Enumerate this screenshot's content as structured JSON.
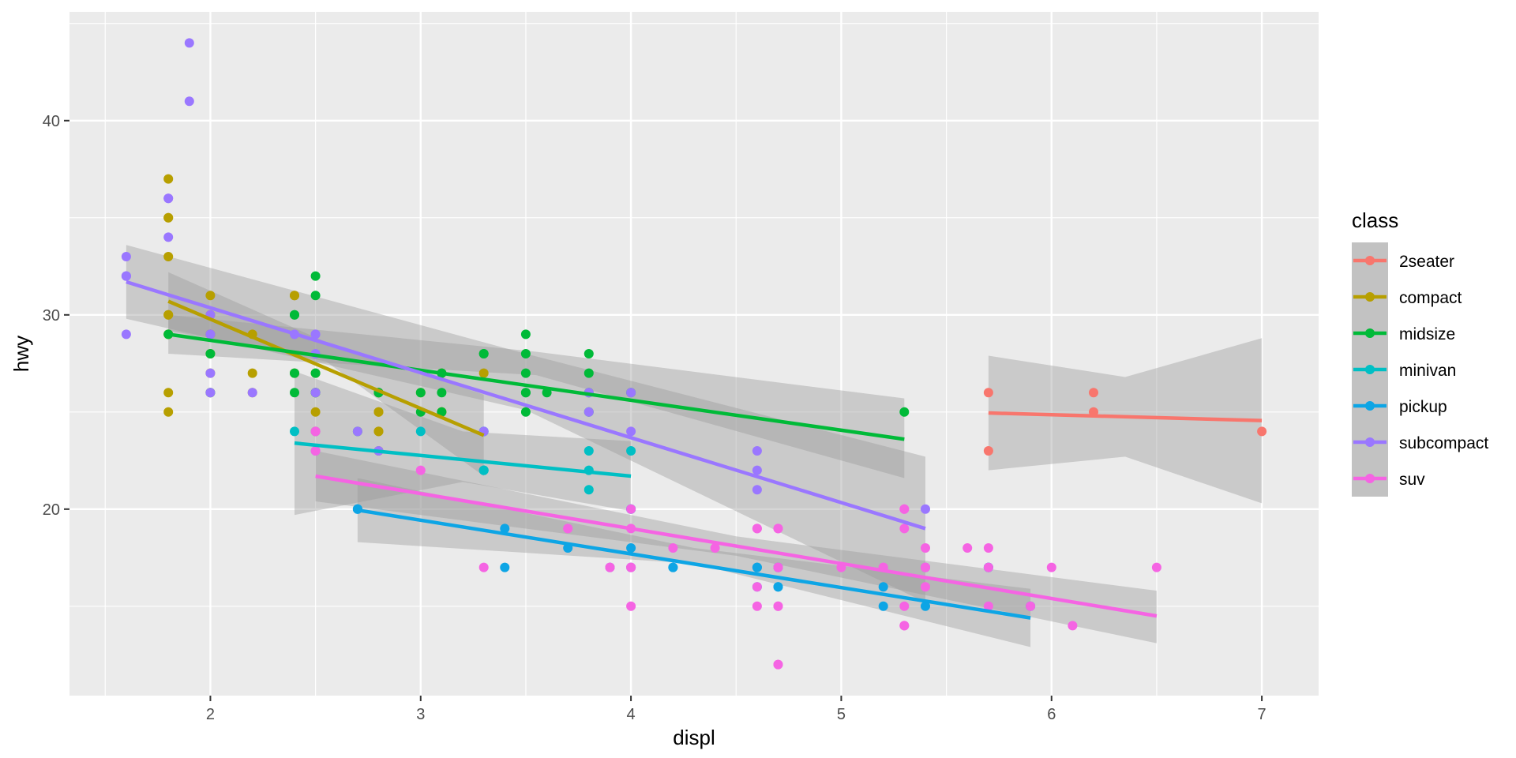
{
  "chart_data": {
    "type": "scatter",
    "title": "",
    "xlabel": "displ",
    "ylabel": "hwy",
    "xlim": [
      1.33,
      7.27
    ],
    "ylim": [
      10.4,
      45.6
    ],
    "x_ticks": [
      2,
      3,
      4,
      5,
      6,
      7
    ],
    "y_ticks": [
      20,
      30,
      40
    ],
    "grid": true,
    "legend": {
      "title": "class",
      "placement": "right"
    },
    "smoothing": {
      "method": "lm",
      "confidence_band": true
    },
    "series": [
      {
        "name": "2seater",
        "color": "#F8766D",
        "points": [
          [
            5.7,
            26
          ],
          [
            5.7,
            23
          ],
          [
            6.2,
            26
          ],
          [
            6.2,
            25
          ],
          [
            7.0,
            24
          ]
        ],
        "fit": {
          "x_range": [
            5.7,
            7.0
          ],
          "y_range": [
            24.95,
            24.56
          ]
        },
        "band": {
          "x": [
            5.7,
            6.35,
            7.0
          ],
          "lower": [
            22.0,
            22.7,
            20.3
          ],
          "upper": [
            27.9,
            26.8,
            28.8
          ]
        }
      },
      {
        "name": "compact",
        "color": "#B79F00",
        "points": [
          [
            1.8,
            29
          ],
          [
            1.8,
            29
          ],
          [
            2.0,
            31
          ],
          [
            2.0,
            30
          ],
          [
            2.8,
            26
          ],
          [
            2.8,
            26
          ],
          [
            3.1,
            27
          ],
          [
            1.8,
            26
          ],
          [
            1.8,
            25
          ],
          [
            2.0,
            28
          ],
          [
            2.0,
            27
          ],
          [
            2.8,
            25
          ],
          [
            2.8,
            25
          ],
          [
            3.1,
            25
          ],
          [
            3.1,
            25
          ],
          [
            2.2,
            26
          ],
          [
            2.2,
            27
          ],
          [
            2.4,
            31
          ],
          [
            2.4,
            31
          ],
          [
            3.0,
            26
          ],
          [
            3.3,
            27
          ],
          [
            1.8,
            30
          ],
          [
            1.8,
            33
          ],
          [
            1.8,
            35
          ],
          [
            1.8,
            37
          ],
          [
            1.8,
            35
          ],
          [
            2.0,
            29
          ],
          [
            2.0,
            26
          ],
          [
            2.0,
            29
          ],
          [
            2.0,
            29
          ],
          [
            2.5,
            26
          ],
          [
            2.5,
            25
          ],
          [
            2.2,
            29
          ],
          [
            2.5,
            27
          ],
          [
            2.8,
            24
          ],
          [
            2.8,
            24
          ],
          [
            2.4,
            27
          ],
          [
            2.5,
            24
          ],
          [
            2.8,
            23
          ],
          [
            1.8,
            30
          ]
        ],
        "fit": {
          "x_range": [
            1.8,
            3.3
          ],
          "y_range": [
            30.7,
            23.8
          ]
        },
        "band": {
          "x": [
            1.8,
            2.55,
            3.3
          ],
          "lower": [
            29.2,
            27.6,
            21.7
          ],
          "upper": [
            32.2,
            28.6,
            25.9
          ]
        }
      },
      {
        "name": "midsize",
        "color": "#00BA38",
        "points": [
          [
            2.4,
            30
          ],
          [
            2.4,
            30
          ],
          [
            3.1,
            26
          ],
          [
            3.5,
            29
          ],
          [
            3.6,
            26
          ],
          [
            2.4,
            27
          ],
          [
            3.0,
            25
          ],
          [
            3.3,
            28
          ],
          [
            3.3,
            28
          ],
          [
            3.5,
            26
          ],
          [
            3.8,
            26
          ],
          [
            3.8,
            25
          ],
          [
            3.8,
            27
          ],
          [
            5.3,
            25
          ],
          [
            2.5,
            31
          ],
          [
            2.5,
            32
          ],
          [
            2.5,
            27
          ],
          [
            2.5,
            26
          ],
          [
            3.5,
            25
          ],
          [
            3.5,
            27
          ],
          [
            1.8,
            29
          ],
          [
            2.8,
            26
          ],
          [
            2.8,
            26
          ],
          [
            3.5,
            28
          ],
          [
            2.4,
            26
          ],
          [
            3.1,
            25
          ],
          [
            3.1,
            27
          ],
          [
            2.0,
            28
          ],
          [
            2.0,
            26
          ],
          [
            2.7,
            24
          ],
          [
            3.5,
            26
          ],
          [
            4.0,
            26
          ],
          [
            3.8,
            28
          ],
          [
            2.5,
            26
          ],
          [
            3.0,
            26
          ]
        ],
        "fit": {
          "x_range": [
            1.8,
            5.3
          ],
          "y_range": [
            29.0,
            23.6
          ]
        },
        "band": {
          "x": [
            1.8,
            3.55,
            5.3
          ],
          "lower": [
            28.0,
            26.9,
            21.6
          ],
          "upper": [
            30.0,
            28.1,
            25.7
          ]
        }
      },
      {
        "name": "minivan",
        "color": "#00BFC4",
        "points": [
          [
            2.4,
            24
          ],
          [
            3.0,
            24
          ],
          [
            3.3,
            22
          ],
          [
            3.3,
            22
          ],
          [
            3.3,
            24
          ],
          [
            3.3,
            24
          ],
          [
            3.3,
            22
          ],
          [
            3.8,
            22
          ],
          [
            3.8,
            21
          ],
          [
            3.8,
            23
          ],
          [
            4.0,
            23
          ]
        ],
        "fit": {
          "x_range": [
            2.4,
            4.0
          ],
          "y_range": [
            23.4,
            21.7
          ]
        },
        "band": {
          "x": [
            2.4,
            3.2,
            4.0
          ],
          "lower": [
            19.7,
            21.4,
            19.9
          ],
          "upper": [
            27.1,
            24.0,
            23.5
          ]
        }
      },
      {
        "name": "pickup",
        "color": "#0DA5E5",
        "points": [
          [
            2.7,
            20
          ],
          [
            2.7,
            20
          ],
          [
            2.7,
            20
          ],
          [
            3.4,
            17
          ],
          [
            3.4,
            19
          ],
          [
            4.0,
            17
          ],
          [
            4.0,
            18
          ],
          [
            4.7,
            16
          ],
          [
            4.7,
            16
          ],
          [
            5.7,
            17
          ],
          [
            4.7,
            17
          ],
          [
            4.7,
            17
          ],
          [
            5.2,
            15
          ],
          [
            5.2,
            16
          ],
          [
            5.9,
            15
          ],
          [
            4.2,
            17
          ],
          [
            4.2,
            17
          ],
          [
            4.6,
            17
          ],
          [
            4.6,
            16
          ],
          [
            5.4,
            15
          ],
          [
            4.0,
            20
          ],
          [
            4.0,
            20
          ],
          [
            4.6,
            17
          ],
          [
            5.4,
            17
          ],
          [
            5.7,
            17
          ],
          [
            3.7,
            18
          ],
          [
            3.9,
            17
          ]
        ],
        "fit": {
          "x_range": [
            2.7,
            5.9
          ],
          "y_range": [
            19.95,
            14.4
          ]
        },
        "band": {
          "x": [
            2.7,
            4.3,
            5.9
          ],
          "lower": [
            18.3,
            17.2,
            12.9
          ],
          "upper": [
            21.6,
            18.0,
            15.9
          ]
        }
      },
      {
        "name": "subcompact",
        "color": "#9A77FF",
        "points": [
          [
            1.6,
            33
          ],
          [
            1.6,
            32
          ],
          [
            1.6,
            32
          ],
          [
            1.6,
            29
          ],
          [
            1.6,
            32
          ],
          [
            1.8,
            34
          ],
          [
            1.8,
            36
          ],
          [
            1.8,
            36
          ],
          [
            2.0,
            29
          ],
          [
            2.0,
            26
          ],
          [
            2.0,
            27
          ],
          [
            1.9,
            44
          ],
          [
            1.9,
            41
          ],
          [
            2.5,
            29
          ],
          [
            2.5,
            26
          ],
          [
            2.5,
            28
          ],
          [
            2.5,
            29
          ],
          [
            3.8,
            26
          ],
          [
            3.8,
            25
          ],
          [
            4.6,
            23
          ],
          [
            4.6,
            22
          ],
          [
            4.6,
            21
          ],
          [
            5.4,
            20
          ],
          [
            4.0,
            24
          ],
          [
            4.0,
            26
          ],
          [
            3.3,
            24
          ],
          [
            2.2,
            26
          ],
          [
            2.4,
            29
          ],
          [
            2.0,
            30
          ],
          [
            2.5,
            24
          ],
          [
            2.7,
            24
          ],
          [
            2.5,
            23
          ],
          [
            2.8,
            23
          ],
          [
            2.0,
            29
          ]
        ],
        "fit": {
          "x_range": [
            1.6,
            5.4
          ],
          "y_range": [
            31.7,
            19.0
          ]
        },
        "band": {
          "x": [
            1.6,
            3.5,
            5.4
          ],
          "lower": [
            29.8,
            25.1,
            15.2
          ],
          "upper": [
            33.6,
            28.0,
            22.7
          ]
        }
      },
      {
        "name": "suv",
        "color": "#F564E3",
        "points": [
          [
            5.3,
            20
          ],
          [
            5.3,
            15
          ],
          [
            5.3,
            20
          ],
          [
            5.7,
            15
          ],
          [
            6.5,
            17
          ],
          [
            3.7,
            19
          ],
          [
            3.7,
            19
          ],
          [
            3.9,
            17
          ],
          [
            3.9,
            17
          ],
          [
            4.7,
            17
          ],
          [
            4.7,
            19
          ],
          [
            4.7,
            12
          ],
          [
            5.2,
            17
          ],
          [
            5.2,
            17
          ],
          [
            5.7,
            18
          ],
          [
            5.9,
            15
          ],
          [
            4.6,
            19
          ],
          [
            5.4,
            17
          ],
          [
            5.4,
            18
          ],
          [
            4.0,
            17
          ],
          [
            4.0,
            19
          ],
          [
            4.0,
            20
          ],
          [
            4.0,
            15
          ],
          [
            4.6,
            19
          ],
          [
            5.0,
            17
          ],
          [
            4.2,
            18
          ],
          [
            4.4,
            18
          ],
          [
            4.6,
            15
          ],
          [
            5.4,
            17
          ],
          [
            5.4,
            16
          ],
          [
            4.6,
            16
          ],
          [
            4.7,
            15
          ],
          [
            5.3,
            14
          ],
          [
            5.6,
            18
          ],
          [
            6.1,
            14
          ],
          [
            2.5,
            24
          ],
          [
            2.5,
            23
          ],
          [
            3.0,
            22
          ],
          [
            3.3,
            17
          ],
          [
            4.0,
            17
          ],
          [
            4.7,
            19
          ],
          [
            4.7,
            12
          ],
          [
            5.7,
            17
          ],
          [
            6.0,
            17
          ],
          [
            4.7,
            15
          ],
          [
            4.7,
            17
          ],
          [
            5.3,
            19
          ],
          [
            5.3,
            14
          ]
        ],
        "fit": {
          "x_range": [
            2.5,
            6.5
          ],
          "y_range": [
            21.7,
            14.5
          ]
        },
        "band": {
          "x": [
            2.5,
            4.5,
            6.5
          ],
          "lower": [
            20.4,
            17.6,
            13.1
          ],
          "upper": [
            23.0,
            18.6,
            15.8
          ]
        }
      }
    ]
  }
}
